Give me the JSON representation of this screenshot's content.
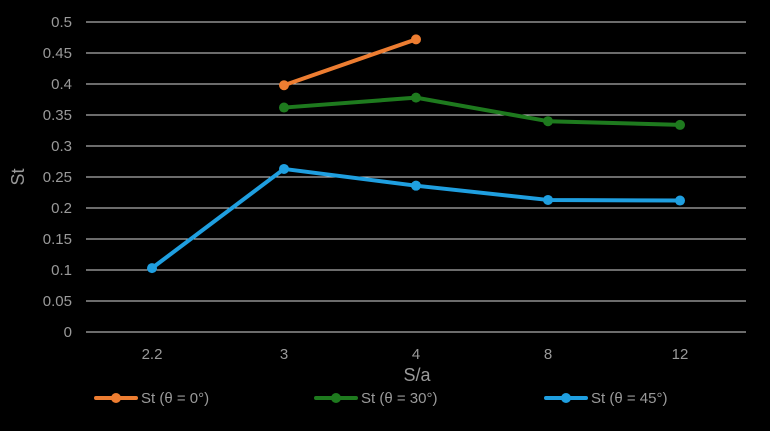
{
  "chart_data": {
    "type": "line",
    "title": "",
    "xlabel": "S/a",
    "ylabel": "St",
    "categories": [
      "2.2",
      "3",
      "4",
      "8",
      "12"
    ],
    "ylim": [
      0,
      0.5
    ],
    "yticks": [
      "0",
      "0.05",
      "0.1",
      "0.15",
      "0.2",
      "0.25",
      "0.3",
      "0.35",
      "0.4",
      "0.45",
      "0.5"
    ],
    "grid": true,
    "legend_position": "bottom",
    "series": [
      {
        "name": "St (θ = 0°)",
        "color": "#ed7d31",
        "values": [
          null,
          0.398,
          0.472,
          null,
          null
        ]
      },
      {
        "name": "St (θ = 30°)",
        "color": "#1e7a1e",
        "values": [
          null,
          0.362,
          0.378,
          0.34,
          0.334
        ]
      },
      {
        "name": "St (θ = 45°)",
        "color": "#1f9fe0",
        "values": [
          0.103,
          0.263,
          0.236,
          0.213,
          0.212
        ]
      }
    ]
  }
}
